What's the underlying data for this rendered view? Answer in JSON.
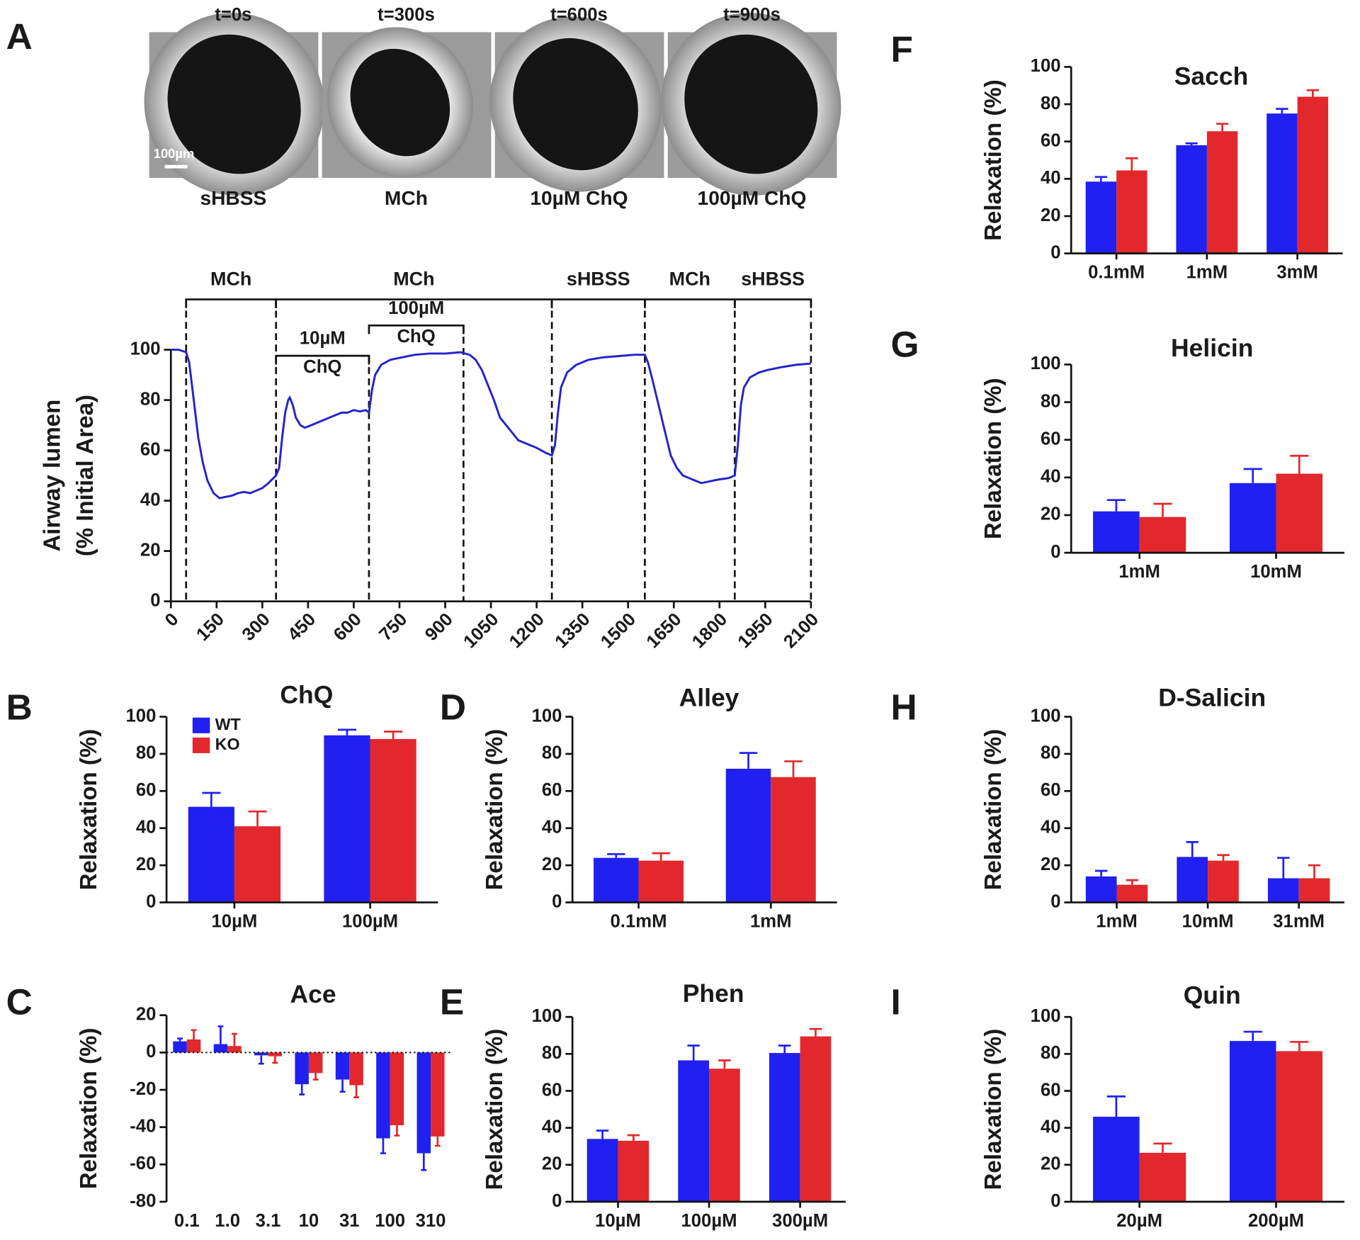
{
  "chart_data": [
    {
      "type": "line",
      "panel": "A",
      "frames": [
        {
          "time": "t=0s",
          "label": "sHBSS"
        },
        {
          "time": "t=300s",
          "label": "MCh"
        },
        {
          "time": "t=600s",
          "label": "10µM ChQ"
        },
        {
          "time": "t=900s",
          "label": "100µM ChQ"
        }
      ],
      "scale_bar": "100µm",
      "conditions": [
        {
          "label": "MCh",
          "start": 50,
          "end": 345
        },
        {
          "label": "MCh",
          "start": 345,
          "end": 1250
        },
        {
          "label": "sHBSS",
          "start": 1250,
          "end": 1555
        },
        {
          "label": "MCh",
          "start": 1555,
          "end": 1850
        },
        {
          "label": "sHBSS",
          "start": 1850,
          "end": 2100
        }
      ],
      "drug_conditions": [
        {
          "label": [
            "10µM",
            "ChQ"
          ],
          "start": 345,
          "end": 650
        },
        {
          "label": [
            "100µM",
            "ChQ"
          ],
          "start": 650,
          "end": 960
        }
      ],
      "y_label": [
        "Airway lumen",
        "(% Initial Area)"
      ],
      "x": [
        0,
        25,
        50,
        60,
        75,
        90,
        105,
        120,
        140,
        160,
        180,
        200,
        220,
        240,
        260,
        280,
        300,
        320,
        345,
        355,
        365,
        375,
        385,
        390,
        400,
        410,
        425,
        440,
        460,
        480,
        500,
        520,
        540,
        560,
        580,
        600,
        620,
        640,
        650,
        660,
        670,
        690,
        720,
        760,
        800,
        850,
        900,
        950,
        980,
        1000,
        1020,
        1040,
        1060,
        1080,
        1100,
        1120,
        1140,
        1160,
        1180,
        1200,
        1230,
        1250,
        1260,
        1270,
        1280,
        1300,
        1330,
        1370,
        1420,
        1470,
        1520,
        1555,
        1565,
        1580,
        1600,
        1620,
        1640,
        1660,
        1680,
        1700,
        1720,
        1740,
        1760,
        1780,
        1800,
        1830,
        1850,
        1860,
        1870,
        1880,
        1900,
        1930,
        1960,
        2000,
        2050,
        2100
      ],
      "values": [
        100,
        100,
        99,
        95,
        80,
        65,
        55,
        48,
        43,
        41,
        41.5,
        42,
        43,
        43.5,
        43,
        44,
        45,
        47,
        50,
        53,
        65,
        75,
        80,
        81,
        78,
        73,
        70,
        69,
        70,
        71,
        72,
        73,
        74,
        75,
        75,
        76,
        75.5,
        76,
        75,
        84,
        90,
        94,
        96,
        97,
        98,
        98.5,
        98.5,
        99,
        98,
        96,
        92,
        86,
        80,
        73,
        70,
        67,
        64,
        63,
        62,
        61,
        59,
        58,
        62,
        75,
        85,
        91,
        94,
        96,
        97,
        97.5,
        98,
        98,
        95,
        88,
        78,
        68,
        58,
        53,
        50,
        49,
        48,
        47,
        47.5,
        48,
        48.5,
        49,
        50,
        62,
        78,
        85,
        89,
        91,
        92,
        93,
        94,
        94.5
      ],
      "color": "#2424c8",
      "xlim": [
        0,
        2100
      ],
      "xticks": [
        0,
        150,
        300,
        450,
        600,
        750,
        900,
        1050,
        1200,
        1350,
        1500,
        1650,
        1800,
        1950,
        2100
      ],
      "ylim": [
        0,
        100
      ],
      "yticks": [
        0,
        20,
        40,
        60,
        80,
        100
      ]
    },
    {
      "type": "bar",
      "panel": "B",
      "title": "ChQ",
      "y_label": "Relaxation (%)",
      "categories": [
        "10µM",
        "100µM"
      ],
      "series": [
        {
          "name": "WT",
          "color": "#2020f0",
          "values": [
            51.5,
            90
          ],
          "errors": [
            7.5,
            3
          ]
        },
        {
          "name": "KO",
          "color": "#e2282c",
          "values": [
            41,
            88
          ],
          "errors": [
            8,
            4
          ]
        }
      ],
      "legend": "upper left",
      "ylim": [
        0,
        100
      ],
      "yticks": [
        0,
        20,
        40,
        60,
        80,
        100
      ]
    },
    {
      "type": "bar",
      "panel": "C",
      "title": "Ace",
      "y_label": "Relaxation (%)",
      "categories": [
        "0.1",
        "1.0",
        "3.1",
        "10",
        "31",
        "100",
        "310"
      ],
      "series": [
        {
          "color": "#2020f0",
          "values": [
            6,
            4.5,
            -1.5,
            -17,
            -14.5,
            -46,
            -54
          ],
          "errors": [
            1.5,
            9.5,
            4.5,
            5.5,
            6.5,
            8,
            9
          ]
        },
        {
          "color": "#e2282c",
          "values": [
            7,
            3.5,
            -2,
            -11,
            -17.5,
            -39,
            -45
          ],
          "errors": [
            5,
            6.5,
            3.5,
            3.5,
            6.5,
            5.5,
            5
          ]
        }
      ],
      "ylim": [
        -80,
        20
      ],
      "yticks": [
        -80,
        -60,
        -40,
        -20,
        0,
        20
      ]
    },
    {
      "type": "bar",
      "panel": "D",
      "title": "Alley",
      "y_label": "Relaxation (%)",
      "categories": [
        "0.1mM",
        "1mM"
      ],
      "series": [
        {
          "color": "#2020f0",
          "values": [
            24,
            72
          ],
          "errors": [
            2,
            8.5
          ]
        },
        {
          "color": "#e2282c",
          "values": [
            22.5,
            67.5
          ],
          "errors": [
            4,
            8.5
          ]
        }
      ],
      "ylim": [
        0,
        100
      ],
      "yticks": [
        0,
        20,
        40,
        60,
        80,
        100
      ]
    },
    {
      "type": "bar",
      "panel": "E",
      "title": "Phen",
      "y_label": "Relaxation (%)",
      "categories": [
        "10µM",
        "100µM",
        "300µM"
      ],
      "series": [
        {
          "color": "#2020f0",
          "values": [
            34,
            76.5,
            80.5
          ],
          "errors": [
            4.5,
            8,
            4
          ]
        },
        {
          "color": "#e2282c",
          "values": [
            33,
            72,
            89.5
          ],
          "errors": [
            3,
            4.5,
            4
          ]
        }
      ],
      "ylim": [
        0,
        100
      ],
      "yticks": [
        0,
        20,
        40,
        60,
        80,
        100
      ]
    },
    {
      "type": "bar",
      "panel": "F",
      "title": "Sacch",
      "y_label": "Relaxation (%)",
      "categories": [
        "0.1mM",
        "1mM",
        "3mM"
      ],
      "series": [
        {
          "color": "#2020f0",
          "values": [
            38.5,
            58,
            75
          ],
          "errors": [
            2.5,
            1,
            2.5
          ]
        },
        {
          "color": "#e2282c",
          "values": [
            44.5,
            65.5,
            84
          ],
          "errors": [
            6.5,
            4,
            3.5
          ]
        }
      ],
      "ylim": [
        0,
        100
      ],
      "yticks": [
        0,
        20,
        40,
        60,
        80,
        100
      ]
    },
    {
      "type": "bar",
      "panel": "G",
      "title": "Helicin",
      "y_label": "Relaxation (%)",
      "categories": [
        "1mM",
        "10mM"
      ],
      "series": [
        {
          "color": "#2020f0",
          "values": [
            22,
            37
          ],
          "errors": [
            6,
            7.5
          ]
        },
        {
          "color": "#e2282c",
          "values": [
            19,
            42
          ],
          "errors": [
            7,
            9.5
          ]
        }
      ],
      "ylim": [
        0,
        100
      ],
      "yticks": [
        0,
        20,
        40,
        60,
        80,
        100
      ]
    },
    {
      "type": "bar",
      "panel": "H",
      "title": "D-Salicin",
      "y_label": "Relaxation (%)",
      "categories": [
        "1mM",
        "10mM",
        "31mM"
      ],
      "series": [
        {
          "color": "#2020f0",
          "values": [
            14,
            24.5,
            13
          ],
          "errors": [
            3,
            8,
            11
          ]
        },
        {
          "color": "#e2282c",
          "values": [
            9.5,
            22.5,
            13
          ],
          "errors": [
            2.5,
            3,
            7
          ]
        }
      ],
      "ylim": [
        0,
        100
      ],
      "yticks": [
        0,
        20,
        40,
        60,
        80,
        100
      ]
    },
    {
      "type": "bar",
      "panel": "I",
      "title": "Quin",
      "y_label": "Relaxation (%)",
      "categories": [
        "20µM",
        "200µM"
      ],
      "series": [
        {
          "color": "#2020f0",
          "values": [
            46,
            87
          ],
          "errors": [
            11,
            5
          ]
        },
        {
          "color": "#e2282c",
          "values": [
            26.5,
            81.5
          ],
          "errors": [
            5,
            5
          ]
        }
      ],
      "ylim": [
        0,
        100
      ],
      "yticks": [
        0,
        20,
        40,
        60,
        80,
        100
      ]
    }
  ]
}
